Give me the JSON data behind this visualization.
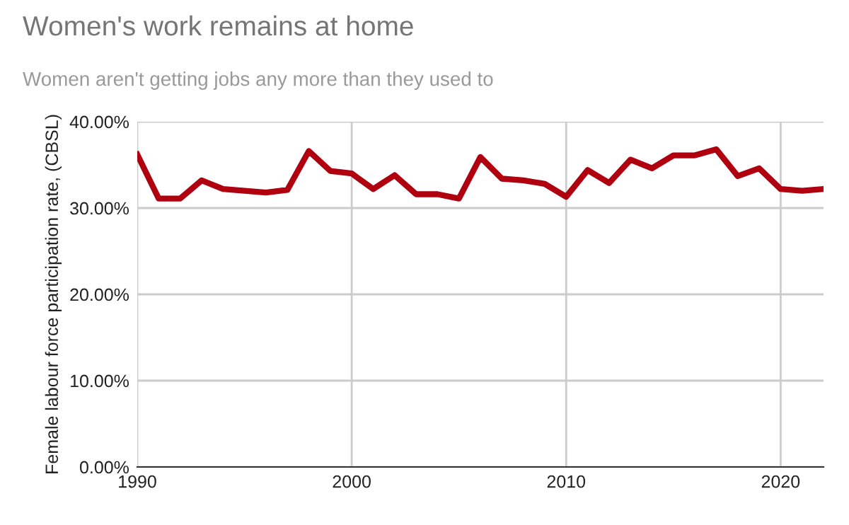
{
  "chart_data": {
    "type": "line",
    "title": "Women's work remains at home",
    "subtitle": "Women aren't getting jobs any more than they used to",
    "ylabel": "Female labour force participation rate, (CBSL)",
    "x": [
      1990,
      1991,
      1992,
      1993,
      1994,
      1995,
      1996,
      1997,
      1998,
      1999,
      2000,
      2001,
      2002,
      2003,
      2004,
      2005,
      2006,
      2007,
      2008,
      2009,
      2010,
      2011,
      2012,
      2013,
      2014,
      2015,
      2016,
      2017,
      2018,
      2019,
      2020,
      2021,
      2022
    ],
    "series": [
      {
        "color": "#b0000f",
        "values": [
          36.2,
          31.1,
          31.1,
          33.2,
          32.2,
          32.0,
          31.8,
          32.1,
          36.6,
          34.3,
          34.0,
          32.2,
          33.8,
          31.6,
          31.6,
          31.1,
          35.9,
          33.4,
          33.2,
          32.8,
          31.3,
          34.4,
          32.9,
          35.6,
          34.6,
          36.1,
          36.1,
          36.8,
          33.7,
          34.6,
          32.2,
          32.0,
          32.2
        ]
      }
    ],
    "xlim": [
      1990,
      2022
    ],
    "xticks": [
      1990,
      2000,
      2010,
      2020
    ],
    "ylim": [
      0,
      40
    ],
    "yticks": [
      {
        "value": 0,
        "label": "0.00%"
      },
      {
        "value": 10,
        "label": "10.00%"
      },
      {
        "value": 20,
        "label": "20.00%"
      },
      {
        "value": 30,
        "label": "30.00%"
      },
      {
        "value": 40,
        "label": "40.00%"
      }
    ],
    "grid": true,
    "legend": false,
    "marker": "none",
    "line_style": "solid"
  }
}
